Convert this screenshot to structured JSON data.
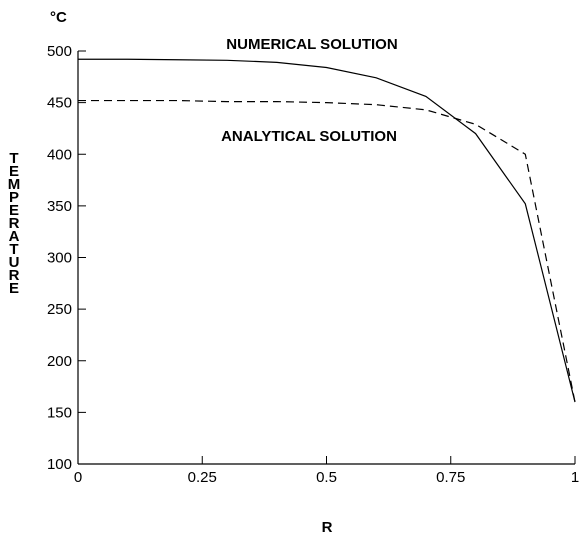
{
  "chart_data": {
    "type": "line",
    "unit_label": "°C",
    "x_label": "R",
    "y_label": "TEMPERATURE",
    "annotations": [
      "NUMERICAL SOLUTION",
      "ANALYTICAL SOLUTION"
    ],
    "x": [
      0,
      0.1,
      0.2,
      0.3,
      0.4,
      0.5,
      0.6,
      0.7,
      0.8,
      0.9,
      1
    ],
    "series": [
      {
        "name": "NUMERICAL SOLUTION",
        "color": "#000000",
        "line_style": "solid",
        "values": [
          492,
          492,
          491.5,
          491,
          489,
          484,
          474,
          456,
          420,
          352,
          160
        ]
      },
      {
        "name": "ANALYTICAL SOLUTION",
        "color": "#000000",
        "line_style": "dashed",
        "values": [
          452,
          452,
          452,
          451,
          451,
          450,
          448,
          443,
          429,
          400,
          160
        ]
      }
    ],
    "xlim": [
      0,
      1
    ],
    "xticks": [
      0,
      0.25,
      0.5,
      0.75,
      1
    ],
    "ylim": [
      100,
      500
    ],
    "yticks": [
      100,
      150,
      200,
      250,
      300,
      350,
      400,
      450,
      500
    ],
    "grid": false
  }
}
